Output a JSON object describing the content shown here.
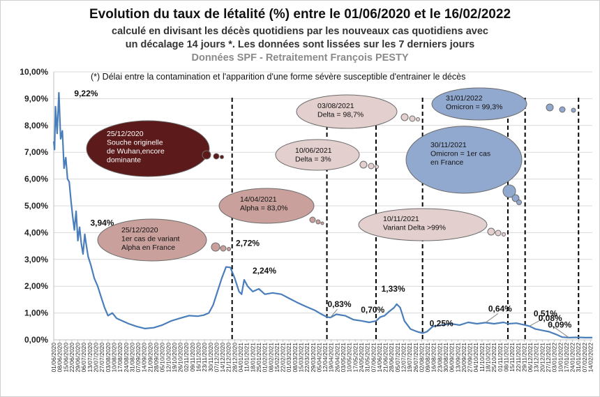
{
  "header": {
    "title": "Evolution du taux de létalité (%) entre le 01/06/2020 et le 16/02/2022",
    "subtitle_line1": "calculé en divisant les décès quotidiens par les nouveaux cas quotidiens avec",
    "subtitle_line2": "un décalage 14 jours *. Les données sont lissées sur les 7 derniers jours",
    "source": "Données SPF - Retraitement François PESTY",
    "footnote": "(*) Délai entre la contamination et l'apparition d'une forme sévère susceptible d'entrainer le décès"
  },
  "colors": {
    "line": "#4a7ebb",
    "bubble_wuhan": "#5c1a1a",
    "bubble_alpha": "#c9a09c",
    "bubble_delta": "#e3cfcd",
    "bubble_omicron": "#92a9cf",
    "vline": "#000000",
    "grid": "#d9d9d9"
  },
  "chart_data": {
    "type": "line",
    "ylim": [
      0,
      10
    ],
    "y_ticks": [
      "0,00%",
      "1,00%",
      "2,00%",
      "3,00%",
      "4,00%",
      "5,00%",
      "6,00%",
      "7,00%",
      "8,00%",
      "9,00%",
      "10,00%"
    ],
    "x_range": [
      "2020-06-01",
      "2022-02-16"
    ],
    "x_tick_labels": [
      "01/06/2020",
      "08/06/2020",
      "15/06/2020",
      "22/06/2020",
      "29/06/2020",
      "06/07/2020",
      "13/07/2020",
      "20/07/2020",
      "27/07/2020",
      "03/08/2020",
      "10/08/2020",
      "17/08/2020",
      "24/08/2020",
      "31/08/2020",
      "07/09/2020",
      "14/09/2020",
      "21/09/2020",
      "28/09/2020",
      "05/10/2020",
      "12/10/2020",
      "19/10/2020",
      "26/10/2020",
      "02/11/2020",
      "09/11/2020",
      "16/11/2020",
      "23/11/2020",
      "30/11/2020",
      "07/12/2020",
      "14/12/2020",
      "21/12/2020",
      "28/12/2020",
      "04/01/2021",
      "11/01/2021",
      "18/01/2021",
      "25/01/2021",
      "01/02/2021",
      "08/02/2021",
      "15/02/2021",
      "22/02/2021",
      "01/03/2021",
      "08/03/2021",
      "15/03/2021",
      "22/03/2021",
      "29/03/2021",
      "05/04/2021",
      "12/04/2021",
      "19/04/2021",
      "26/04/2021",
      "03/05/2021",
      "10/05/2021",
      "17/05/2021",
      "24/05/2021",
      "31/05/2021",
      "07/06/2021",
      "14/06/2021",
      "21/06/2021",
      "28/06/2021",
      "05/07/2021",
      "12/07/2021",
      "19/07/2021",
      "26/07/2021",
      "02/08/2021",
      "09/08/2021",
      "16/08/2021",
      "23/08/2021",
      "30/08/2021",
      "06/09/2021",
      "13/09/2021",
      "20/09/2021",
      "27/09/2021",
      "04/10/2021",
      "11/10/2021",
      "18/10/2021",
      "25/10/2021",
      "01/11/2021",
      "08/11/2021",
      "15/11/2021",
      "22/11/2021",
      "29/11/2021",
      "06/12/2021",
      "13/12/2021",
      "20/12/2021",
      "27/12/2021",
      "03/01/2022",
      "10/01/2022",
      "17/01/2022",
      "24/01/2022",
      "31/01/2022",
      "07/02/2022",
      "14/02/2022"
    ],
    "series": [
      {
        "points": [
          [
            "2020-06-01",
            7.4
          ],
          [
            "2020-06-02",
            7.1
          ],
          [
            "2020-06-03",
            8.7
          ],
          [
            "2020-06-05",
            7.7
          ],
          [
            "2020-06-07",
            9.22
          ],
          [
            "2020-06-09",
            7.5
          ],
          [
            "2020-06-11",
            7.8
          ],
          [
            "2020-06-13",
            6.4
          ],
          [
            "2020-06-15",
            6.8
          ],
          [
            "2020-06-17",
            6.0
          ],
          [
            "2020-06-19",
            5.9
          ],
          [
            "2020-06-21",
            5.2
          ],
          [
            "2020-06-23",
            4.6
          ],
          [
            "2020-06-25",
            4.1
          ],
          [
            "2020-06-27",
            4.8
          ],
          [
            "2020-06-29",
            3.7
          ],
          [
            "2020-07-01",
            4.2
          ],
          [
            "2020-07-03",
            3.6
          ],
          [
            "2020-07-05",
            3.2
          ],
          [
            "2020-07-07",
            3.94
          ],
          [
            "2020-07-09",
            3.5
          ],
          [
            "2020-07-11",
            3.1
          ],
          [
            "2020-07-14",
            2.8
          ],
          [
            "2020-07-18",
            2.3
          ],
          [
            "2020-07-22",
            2.0
          ],
          [
            "2020-07-26",
            1.6
          ],
          [
            "2020-07-30",
            1.2
          ],
          [
            "2020-08-03",
            0.9
          ],
          [
            "2020-08-08",
            1.0
          ],
          [
            "2020-08-13",
            0.8
          ],
          [
            "2020-08-20",
            0.7
          ],
          [
            "2020-08-27",
            0.6
          ],
          [
            "2020-09-05",
            0.5
          ],
          [
            "2020-09-15",
            0.42
          ],
          [
            "2020-09-25",
            0.45
          ],
          [
            "2020-10-05",
            0.55
          ],
          [
            "2020-10-15",
            0.7
          ],
          [
            "2020-10-25",
            0.8
          ],
          [
            "2020-11-05",
            0.9
          ],
          [
            "2020-11-15",
            0.88
          ],
          [
            "2020-11-22",
            0.92
          ],
          [
            "2020-11-28",
            1.0
          ],
          [
            "2020-12-03",
            1.3
          ],
          [
            "2020-12-08",
            1.8
          ],
          [
            "2020-12-13",
            2.3
          ],
          [
            "2020-12-18",
            2.72
          ],
          [
            "2020-12-23",
            2.7
          ],
          [
            "2020-12-28",
            2.3
          ],
          [
            "2021-01-02",
            1.8
          ],
          [
            "2021-01-05",
            1.7
          ],
          [
            "2021-01-08",
            2.24
          ],
          [
            "2021-01-12",
            2.0
          ],
          [
            "2021-01-18",
            1.8
          ],
          [
            "2021-01-25",
            1.9
          ],
          [
            "2021-02-01",
            1.7
          ],
          [
            "2021-02-10",
            1.75
          ],
          [
            "2021-02-20",
            1.7
          ],
          [
            "2021-03-01",
            1.55
          ],
          [
            "2021-03-10",
            1.4
          ],
          [
            "2021-03-20",
            1.25
          ],
          [
            "2021-03-31",
            1.1
          ],
          [
            "2021-04-08",
            0.95
          ],
          [
            "2021-04-14",
            0.85
          ],
          [
            "2021-04-18",
            0.83
          ],
          [
            "2021-04-25",
            0.95
          ],
          [
            "2021-05-05",
            0.9
          ],
          [
            "2021-05-15",
            0.75
          ],
          [
            "2021-05-25",
            0.7
          ],
          [
            "2021-06-02",
            0.65
          ],
          [
            "2021-06-10",
            0.7
          ],
          [
            "2021-06-15",
            0.85
          ],
          [
            "2021-06-20",
            0.9
          ],
          [
            "2021-06-25",
            1.05
          ],
          [
            "2021-07-01",
            1.2
          ],
          [
            "2021-07-04",
            1.33
          ],
          [
            "2021-07-08",
            1.2
          ],
          [
            "2021-07-13",
            0.7
          ],
          [
            "2021-07-20",
            0.4
          ],
          [
            "2021-07-28",
            0.3
          ],
          [
            "2021-08-03",
            0.25
          ],
          [
            "2021-08-08",
            0.3
          ],
          [
            "2021-08-15",
            0.5
          ],
          [
            "2021-08-25",
            0.55
          ],
          [
            "2021-09-05",
            0.6
          ],
          [
            "2021-09-15",
            0.55
          ],
          [
            "2021-09-25",
            0.65
          ],
          [
            "2021-10-05",
            0.6
          ],
          [
            "2021-10-15",
            0.64
          ],
          [
            "2021-10-25",
            0.6
          ],
          [
            "2021-11-05",
            0.65
          ],
          [
            "2021-11-10",
            0.6
          ],
          [
            "2021-11-20",
            0.62
          ],
          [
            "2021-11-30",
            0.55
          ],
          [
            "2021-12-05",
            0.51
          ],
          [
            "2021-12-12",
            0.4
          ],
          [
            "2021-12-20",
            0.35
          ],
          [
            "2021-12-28",
            0.3
          ],
          [
            "2022-01-05",
            0.2
          ],
          [
            "2022-01-12",
            0.1
          ],
          [
            "2022-01-20",
            0.08
          ],
          [
            "2022-01-31",
            0.09
          ],
          [
            "2022-02-08",
            0.08
          ],
          [
            "2022-02-16",
            0.08
          ]
        ]
      }
    ],
    "value_labels": [
      {
        "date": "2020-06-07",
        "value": 9.22,
        "text": "9,22%"
      },
      {
        "date": "2020-07-07",
        "value": 3.94,
        "text": "3,94%"
      },
      {
        "date": "2020-12-18",
        "value": 2.72,
        "text": "2,72%"
      },
      {
        "date": "2021-01-08",
        "value": 2.24,
        "text": "2,24%"
      },
      {
        "date": "2021-04-18",
        "value": 0.83,
        "text": "0,83%"
      },
      {
        "date": "2021-05-25",
        "value": 0.7,
        "text": "0,70%"
      },
      {
        "date": "2021-07-04",
        "value": 1.33,
        "text": "1,33%"
      },
      {
        "date": "2021-08-03",
        "value": 0.25,
        "text": "0,25%"
      },
      {
        "date": "2021-10-15",
        "value": 0.64,
        "text": "0,64%"
      },
      {
        "date": "2021-12-05",
        "value": 0.51,
        "text": "0,51%"
      },
      {
        "date": "2022-01-20",
        "value": 0.08,
        "text": "0,08%"
      },
      {
        "date": "2022-01-31",
        "value": 0.09,
        "text": "0,09%"
      }
    ],
    "event_lines": [
      "2020-12-25",
      "2021-04-14",
      "2021-06-10",
      "2021-08-03",
      "2021-11-10",
      "2021-11-30",
      "2022-01-31"
    ],
    "annotations": [
      {
        "date": "2020-12-25",
        "lines": [
          "25/12/2020",
          "Souche originelle",
          "de Wuhan,encore",
          "dominante"
        ]
      },
      {
        "date": "2020-12-25",
        "lines": [
          "25/12/2020",
          "1er cas de variant",
          "Alpha en France"
        ]
      },
      {
        "date": "2021-04-14",
        "lines": [
          "14/04/2021",
          "Alpha = 83,0%"
        ]
      },
      {
        "date": "2021-06-10",
        "lines": [
          "10/06/2021",
          "Delta = 3%"
        ]
      },
      {
        "date": "2021-08-03",
        "lines": [
          "03/08/2021",
          "Delta = 98,7%"
        ]
      },
      {
        "date": "2021-11-10",
        "lines": [
          "10/11/2021",
          "Variant Delta >99%"
        ]
      },
      {
        "date": "2021-11-30",
        "lines": [
          "30/11/2021",
          "Omicron = 1er cas",
          "en France"
        ]
      },
      {
        "date": "2022-01-31",
        "lines": [
          "31/01/2022",
          "Omicron = 99,3%"
        ]
      }
    ]
  }
}
